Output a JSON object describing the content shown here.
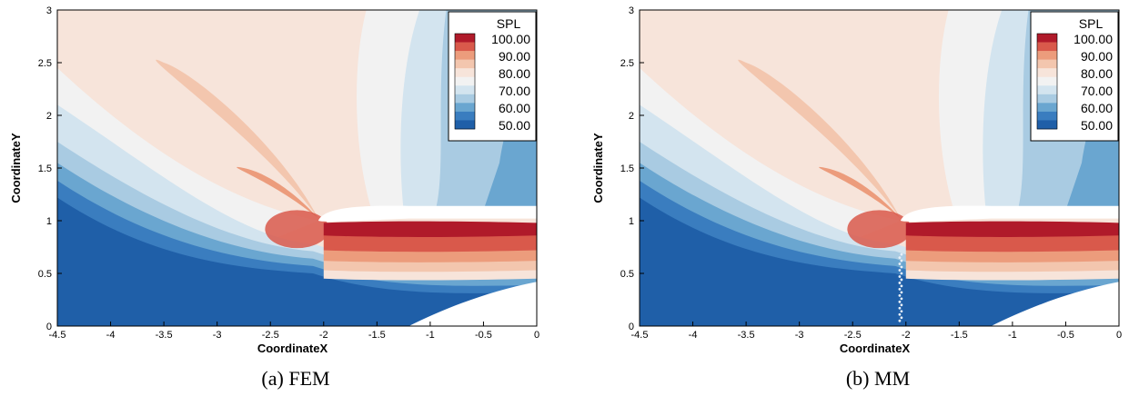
{
  "chart_data": [
    {
      "type": "heatmap",
      "caption": "(a) FEM",
      "xlabel": "CoordinateX",
      "ylabel": "CoordinateY",
      "xlim": [
        -4.5,
        0
      ],
      "ylim": [
        0,
        3
      ],
      "x_ticks": [
        "-4.5",
        "-4",
        "-3.5",
        "-3",
        "-2.5",
        "-2",
        "-1.5",
        "-1",
        "-0.5",
        "0"
      ],
      "y_ticks": [
        "0",
        "0.5",
        "1",
        "1.5",
        "2",
        "2.5",
        "3"
      ],
      "legend": {
        "title": "SPL",
        "labels": [
          "100.00",
          "90.00",
          "80.00",
          "70.00",
          "60.00",
          "50.00"
        ],
        "placement": "top-right"
      },
      "colorbar_levels": [
        50,
        55,
        60,
        65,
        70,
        75,
        80,
        85,
        90,
        95,
        100
      ],
      "colors": [
        "#1f5fa8",
        "#3a7dbf",
        "#6aa6d0",
        "#a9cbe2",
        "#d3e4ef",
        "#f2f2f2",
        "#f7e4da",
        "#f3c6ae",
        "#ec9c7c",
        "#d9594b",
        "#b01a2a"
      ]
    },
    {
      "type": "heatmap",
      "caption": "(b) MM",
      "xlabel": "CoordinateX",
      "ylabel": "CoordinateY",
      "xlim": [
        -4.5,
        0
      ],
      "ylim": [
        0,
        3
      ],
      "x_ticks": [
        "-4.5",
        "-4",
        "-3.5",
        "-3",
        "-2.5",
        "-2",
        "-1.5",
        "-1",
        "-0.5",
        "0"
      ],
      "y_ticks": [
        "0",
        "0.5",
        "1",
        "1.5",
        "2",
        "2.5",
        "3"
      ],
      "legend": {
        "title": "SPL",
        "labels": [
          "100.00",
          "90.00",
          "80.00",
          "70.00",
          "60.00",
          "50.00"
        ],
        "placement": "top-right"
      },
      "colorbar_levels": [
        50,
        55,
        60,
        65,
        70,
        75,
        80,
        85,
        90,
        95,
        100
      ],
      "colors": [
        "#1f5fa8",
        "#3a7dbf",
        "#6aa6d0",
        "#a9cbe2",
        "#d3e4ef",
        "#f2f2f2",
        "#f7e4da",
        "#f3c6ae",
        "#ec9c7c",
        "#d9594b",
        "#b01a2a"
      ]
    }
  ]
}
